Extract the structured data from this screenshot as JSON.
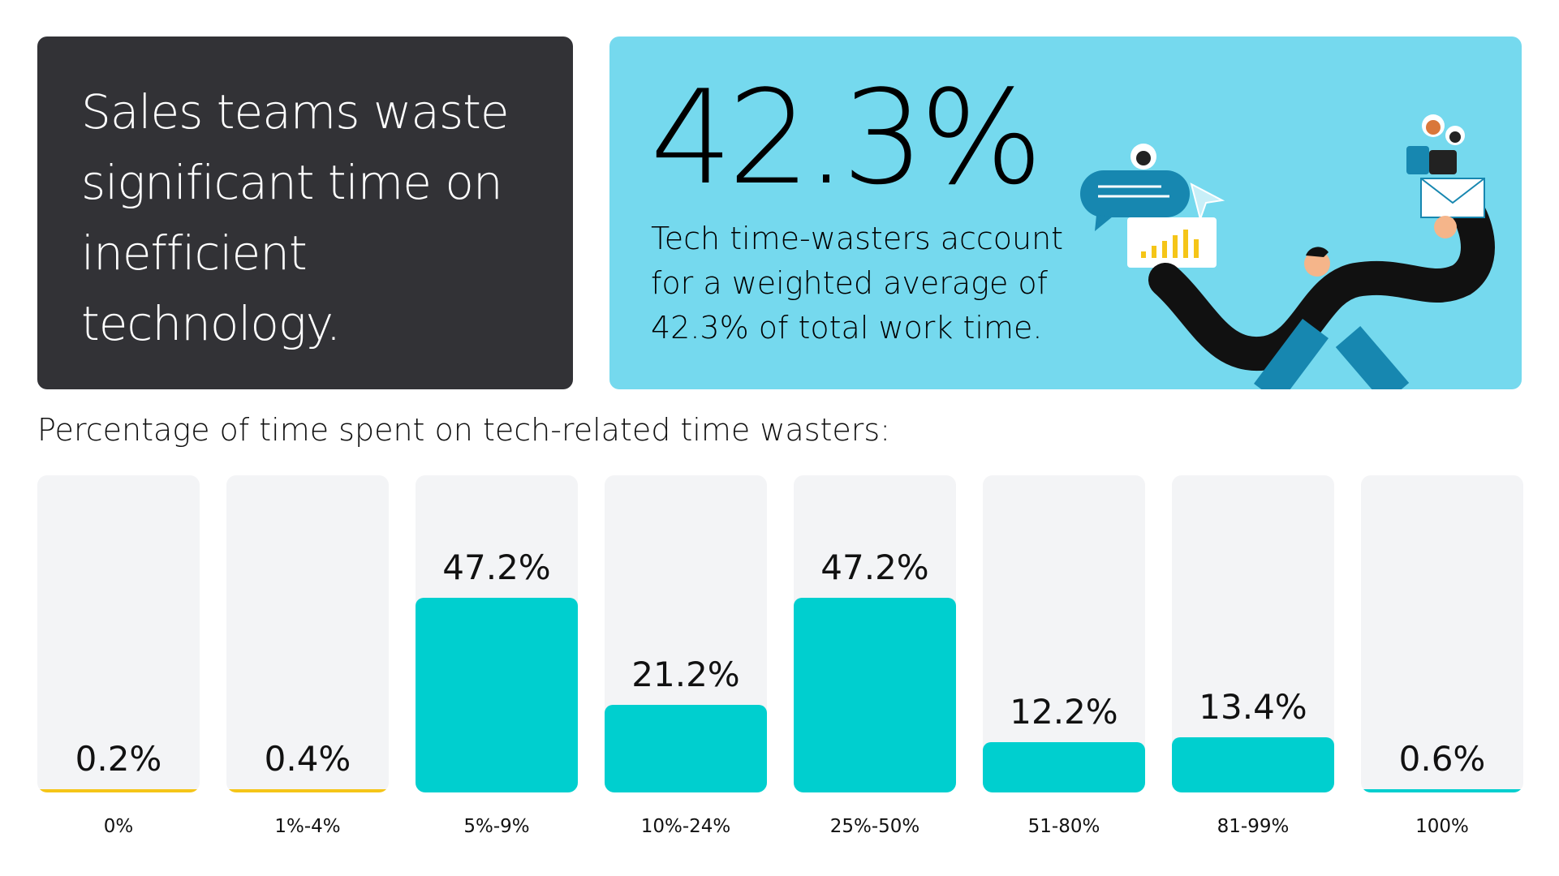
{
  "headline": "Sales teams waste significant time on inefficient technology.",
  "stat": {
    "value": "42.3%",
    "description": "Tech time-wasters account for a weighted average of 42.3% of total work time."
  },
  "chart_data": {
    "type": "bar",
    "title": "Percentage of time spent on tech-related time wasters:",
    "categories": [
      "0%",
      "1%-4%",
      "5%-9%",
      "10%-24%",
      "25%-50%",
      "51-80%",
      "81-99%",
      "100%"
    ],
    "values": [
      0.2,
      0.4,
      47.2,
      21.2,
      47.2,
      12.2,
      13.4,
      0.6
    ],
    "value_labels": [
      "0.2%",
      "0.4%",
      "47.2%",
      "21.2%",
      "47.2%",
      "12.2%",
      "13.4%",
      "0.6%"
    ],
    "colors": [
      "#f5c518",
      "#f5c518",
      "#00cfcf",
      "#00cfcf",
      "#00cfcf",
      "#00cfcf",
      "#00cfcf",
      "#00cfcf"
    ]
  }
}
